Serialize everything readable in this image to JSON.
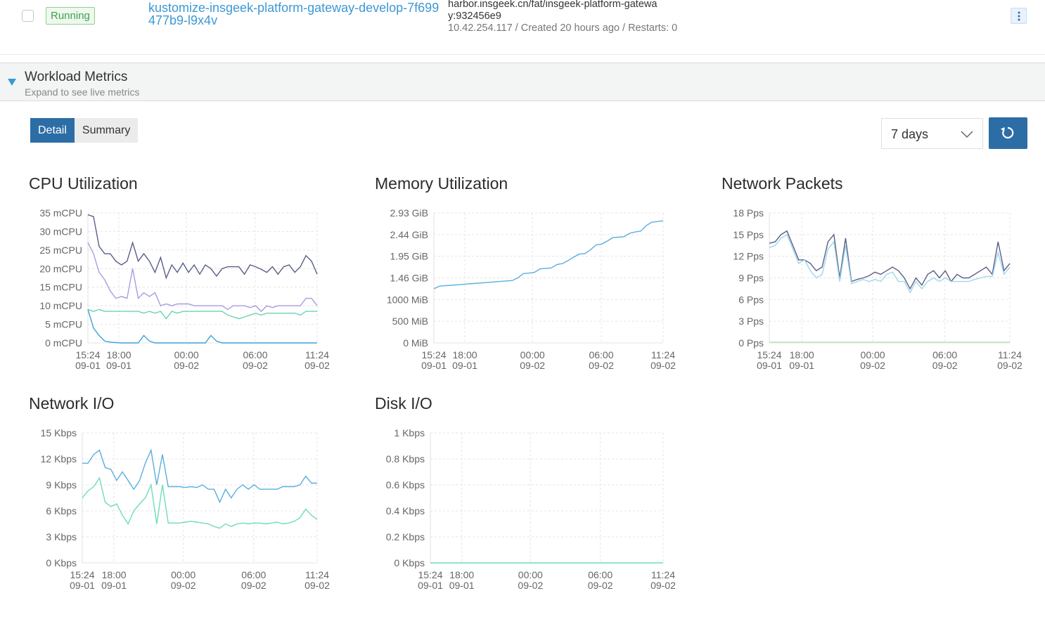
{
  "pod": {
    "status": "Running",
    "name": "kustomize-insgeek-platform-gateway-develop-7f699477b9-l9x4v",
    "image": "harbor.insgeek.cn/fat/insgeek-platform-gateway:932456e9",
    "meta": "10.42.254.117 / Created 20 hours ago / Restarts: 0",
    "kebab_icon": "kebab-menu-icon"
  },
  "metrics": {
    "title": "Workload Metrics",
    "subtitle": "Expand to see live metrics",
    "expand_icon": "caret-down-icon"
  },
  "controls": {
    "detail_label": "Detail",
    "summary_label": "Summary",
    "range_value": "7 days",
    "refresh_icon": "refresh-icon"
  },
  "colors": {
    "accent": "#2d6da6",
    "link": "#3d98d3",
    "running": "#3da34a"
  },
  "chart_data": [
    {
      "type": "line",
      "title": "CPU Utilization",
      "x_ticks": [
        {
          "time": "15:24",
          "date": "09-01"
        },
        {
          "time": "18:00",
          "date": "09-01"
        },
        {
          "time": "00:00",
          "date": "09-02"
        },
        {
          "time": "06:00",
          "date": "09-02"
        },
        {
          "time": "11:24",
          "date": "09-02"
        }
      ],
      "x_tick_pos": [
        0,
        0.135,
        0.43,
        0.73,
        1
      ],
      "y_ticks": [
        "35 mCPU",
        "30 mCPU",
        "25 mCPU",
        "20 mCPU",
        "15 mCPU",
        "10 mCPU",
        "5 mCPU",
        "0 mCPU"
      ],
      "ylim": [
        0,
        35
      ],
      "series": [
        {
          "color": "#5a5f86",
          "values": [
            34.5,
            34,
            26,
            24,
            24,
            22,
            21,
            22,
            27,
            22,
            24,
            22,
            19,
            23,
            17.5,
            21,
            19,
            21.5,
            19,
            21,
            18.5,
            21,
            20,
            18,
            20,
            20.5,
            20.5,
            20.5,
            18.5,
            21,
            20.5,
            19.8,
            19,
            20.5,
            18.5,
            20.5,
            21,
            19,
            20.5,
            23.5,
            22,
            18.5
          ]
        },
        {
          "color": "#a79ce0",
          "values": [
            27,
            24,
            19,
            17,
            14,
            12,
            12.5,
            12,
            20,
            12,
            13.5,
            12.5,
            13.5,
            10,
            10.5,
            10,
            10.5,
            10.5,
            10.5,
            10,
            10,
            10,
            10,
            10,
            10,
            9,
            10,
            10,
            10,
            9.5,
            10,
            8.5,
            10,
            9.5,
            10,
            10,
            10,
            10,
            10,
            12,
            12,
            10
          ]
        },
        {
          "color": "#68d4b0",
          "values": [
            9,
            8.5,
            9,
            8.5,
            8.5,
            8.5,
            8.5,
            8.5,
            8.5,
            8.5,
            8,
            8.5,
            8,
            8.5,
            6.5,
            8.5,
            8,
            8.5,
            8.5,
            8.5,
            8.5,
            8.5,
            8.5,
            8.5,
            8.5,
            7.5,
            7,
            6.5,
            7,
            7.5,
            8,
            7.5,
            8,
            8,
            8,
            8,
            8,
            8,
            7.5,
            8.5,
            8.5,
            8.5
          ]
        },
        {
          "color": "#3fa0d8",
          "values": [
            9,
            4,
            2,
            0.5,
            0.2,
            0.1,
            0,
            0,
            0,
            0,
            2,
            0.5,
            0,
            0,
            0,
            0,
            0,
            0,
            0,
            0,
            0,
            0,
            2,
            0.5,
            0,
            0,
            0,
            0,
            0,
            0,
            0,
            0,
            0,
            0,
            0,
            0,
            0,
            0,
            0,
            0,
            0,
            0
          ]
        }
      ]
    },
    {
      "type": "line",
      "title": "Memory Utilization",
      "x_ticks": [
        {
          "time": "15:24",
          "date": "09-01"
        },
        {
          "time": "18:00",
          "date": "09-01"
        },
        {
          "time": "00:00",
          "date": "09-02"
        },
        {
          "time": "06:00",
          "date": "09-02"
        },
        {
          "time": "11:24",
          "date": "09-02"
        }
      ],
      "x_tick_pos": [
        0,
        0.135,
        0.43,
        0.73,
        1
      ],
      "y_ticks": [
        "2.93 GiB",
        "2.44 GiB",
        "1.95 GiB",
        "1.46 GiB",
        "1000 MiB",
        "500 MiB",
        "0 MiB"
      ],
      "ylim": [
        0,
        6
      ],
      "series": [
        {
          "color": "#5aaede",
          "values": [
            2.5,
            2.62,
            2.64,
            2.66,
            2.68,
            2.7,
            2.72,
            2.74,
            2.76,
            2.78,
            2.8,
            2.82,
            2.84,
            2.86,
            2.88,
            3.0,
            3.2,
            3.22,
            3.26,
            3.42,
            3.44,
            3.46,
            3.62,
            3.66,
            3.8,
            3.96,
            4.1,
            4.12,
            4.3,
            4.52,
            4.56,
            4.7,
            4.86,
            4.88,
            4.9,
            5.06,
            5.12,
            5.16,
            5.42,
            5.58,
            5.6,
            5.64
          ]
        }
      ]
    },
    {
      "type": "line",
      "title": "Network Packets",
      "x_ticks": [
        {
          "time": "15:24",
          "date": "09-01"
        },
        {
          "time": "18:00",
          "date": "09-01"
        },
        {
          "time": "00:00",
          "date": "09-02"
        },
        {
          "time": "06:00",
          "date": "09-02"
        },
        {
          "time": "11:24",
          "date": "09-02"
        }
      ],
      "x_tick_pos": [
        0,
        0.135,
        0.43,
        0.73,
        1
      ],
      "y_ticks": [
        "18 Pps",
        "15 Pps",
        "12 Pps",
        "9 Pps",
        "6 Pps",
        "3 Pps",
        "0 Pps"
      ],
      "ylim": [
        0,
        18
      ],
      "series": [
        {
          "color": "#5a5f86",
          "values": [
            13.8,
            14,
            15,
            15.5,
            13.5,
            11.5,
            11.5,
            11,
            10,
            10.5,
            14,
            15,
            9,
            14.5,
            8.5,
            8.8,
            9,
            9.3,
            9.8,
            9.5,
            10,
            10.5,
            10,
            9,
            7.5,
            9,
            8,
            9.5,
            10,
            9,
            10,
            8.5,
            9.5,
            9,
            9,
            9.5,
            10,
            10.5,
            9.5,
            14,
            10,
            11
          ]
        },
        {
          "color": "#9ed6ec",
          "values": [
            13.2,
            13.5,
            14.5,
            15,
            13,
            11,
            11.5,
            10,
            9,
            9.5,
            13,
            14,
            8.5,
            13.5,
            8.2,
            8.5,
            8.8,
            8.5,
            8.8,
            8.5,
            9.5,
            9.8,
            8.5,
            8.5,
            7,
            8.5,
            7.5,
            8.5,
            9,
            8.5,
            9,
            8.5,
            8.5,
            8.5,
            8.5,
            8.8,
            9,
            9.2,
            9.2,
            12.5,
            9.5,
            10.5
          ]
        },
        {
          "color": "#b7e3b7",
          "values": [
            0.1,
            0.1,
            0.1,
            0.1,
            0.1,
            0.1,
            0.1,
            0.1,
            0.1,
            0.1,
            0.1,
            0.1,
            0.1,
            0.1,
            0.1,
            0.1,
            0.1,
            0.1,
            0.1,
            0.1,
            0.1,
            0.1,
            0.1,
            0.1,
            0.1,
            0.1,
            0.1,
            0.1,
            0.1,
            0.1,
            0.1,
            0.1,
            0.1,
            0.1,
            0.1,
            0.1,
            0.1,
            0.1,
            0.1,
            0.1,
            0.1,
            0.1
          ]
        }
      ]
    },
    {
      "type": "line",
      "title": "Network I/O",
      "x_ticks": [
        {
          "time": "15:24",
          "date": "09-01"
        },
        {
          "time": "18:00",
          "date": "09-01"
        },
        {
          "time": "00:00",
          "date": "09-02"
        },
        {
          "time": "06:00",
          "date": "09-02"
        },
        {
          "time": "11:24",
          "date": "09-02"
        }
      ],
      "x_tick_pos": [
        0,
        0.135,
        0.43,
        0.73,
        1
      ],
      "y_ticks": [
        "15 Kbps",
        "12 Kbps",
        "9 Kbps",
        "6 Kbps",
        "3 Kbps",
        "0 Kbps"
      ],
      "ylim": [
        0,
        15
      ],
      "series": [
        {
          "color": "#5aaede",
          "values": [
            11.5,
            11.5,
            12.5,
            13,
            11,
            10.8,
            9.5,
            10.5,
            9.5,
            8.5,
            9.5,
            11.5,
            13,
            9,
            12.5,
            8.8,
            8.8,
            8.8,
            8.7,
            8.8,
            8.7,
            9,
            8.5,
            8.5,
            7,
            8.5,
            7.5,
            8.5,
            9,
            8.5,
            9,
            8.5,
            8.5,
            8.5,
            8.5,
            8.8,
            8.8,
            8.8,
            9,
            10,
            9.2,
            9.2
          ]
        },
        {
          "color": "#6fdcbc",
          "values": [
            7.5,
            8.3,
            8.8,
            9.8,
            7,
            6.5,
            6.8,
            5.5,
            4.5,
            6,
            6.8,
            7.5,
            9,
            4.5,
            9,
            4.6,
            4.6,
            4.6,
            4.7,
            4.8,
            4.7,
            4.6,
            4.5,
            4.2,
            4,
            4.5,
            4.2,
            4.5,
            4.6,
            4.5,
            4.6,
            4.6,
            4.5,
            4.6,
            4.7,
            4.5,
            4.6,
            4.8,
            5.2,
            6.2,
            5.5,
            5
          ]
        }
      ]
    },
    {
      "type": "line",
      "title": "Disk I/O",
      "x_ticks": [
        {
          "time": "15:24",
          "date": "09-01"
        },
        {
          "time": "18:00",
          "date": "09-01"
        },
        {
          "time": "00:00",
          "date": "09-02"
        },
        {
          "time": "06:00",
          "date": "09-02"
        },
        {
          "time": "11:24",
          "date": "09-02"
        }
      ],
      "x_tick_pos": [
        0,
        0.135,
        0.43,
        0.73,
        1
      ],
      "y_ticks": [
        "1 Kbps",
        "0.8 Kbps",
        "0.6 Kbps",
        "0.4 Kbps",
        "0.2 Kbps",
        "0 Kbps"
      ],
      "ylim": [
        0,
        1
      ],
      "series": [
        {
          "color": "#6fdcbc",
          "values": [
            0,
            0,
            0,
            0,
            0,
            0,
            0,
            0,
            0,
            0,
            0,
            0,
            0,
            0,
            0,
            0,
            0,
            0,
            0,
            0,
            0,
            0,
            0,
            0,
            0,
            0,
            0,
            0,
            0,
            0,
            0,
            0,
            0,
            0,
            0,
            0,
            0,
            0,
            0,
            0,
            0,
            0
          ]
        }
      ]
    }
  ]
}
